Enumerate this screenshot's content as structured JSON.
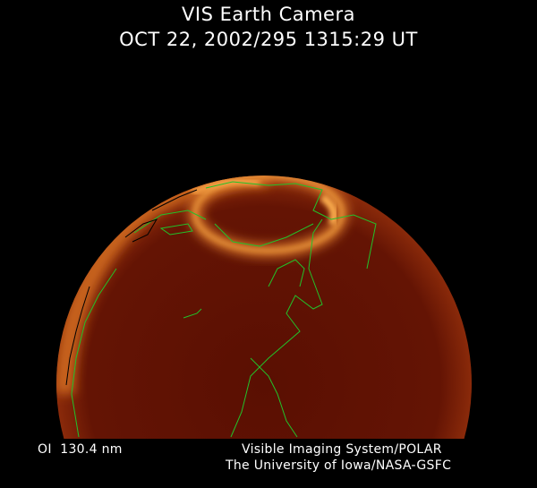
{
  "header": {
    "title": "VIS Earth Camera",
    "timestamp": "OCT 22, 2002/295 1315:29 UT"
  },
  "footer": {
    "wavelength": "OI  130.4 nm",
    "instrument": "Visible Imaging System/POLAR",
    "institution": "The University of Iowa/NASA-GSFC"
  },
  "colors": {
    "disk": "#5a0f02",
    "aurora": "#e0892a",
    "coastlines": "#22c22a"
  }
}
